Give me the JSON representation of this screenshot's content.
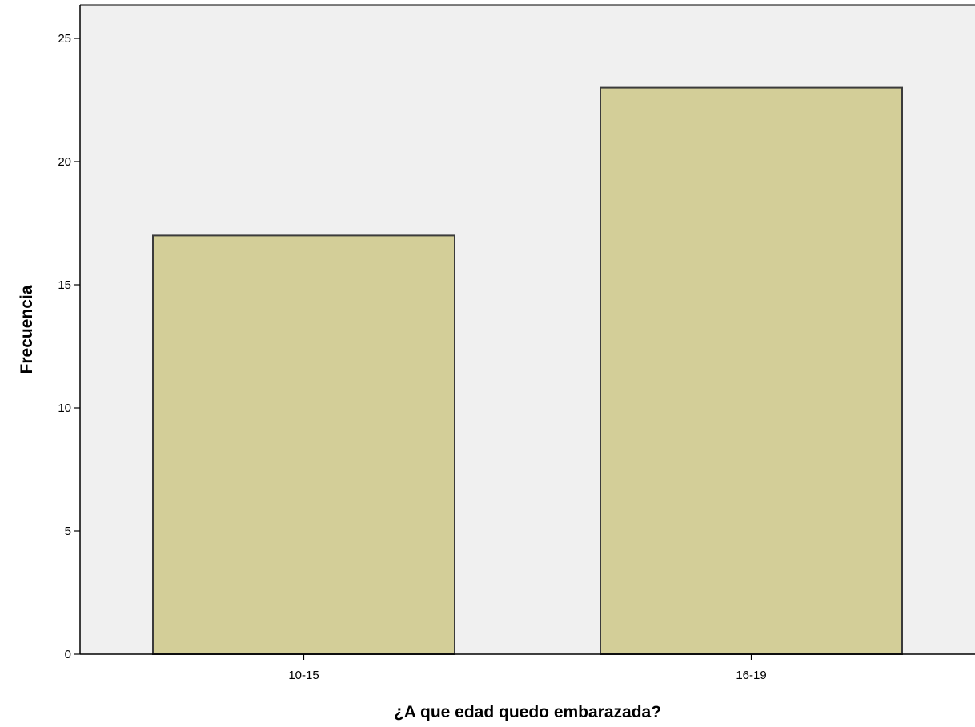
{
  "chart_data": {
    "type": "bar",
    "title": "",
    "xlabel": "¿A que edad quedo embarazada?",
    "ylabel": "Frecuencia",
    "categories": [
      "10-15",
      "16-19"
    ],
    "values": [
      17,
      23
    ],
    "ylim": [
      0,
      25
    ],
    "yticks": [
      0,
      5,
      10,
      15,
      20,
      25
    ],
    "grid": false,
    "legend": "none",
    "colors": {
      "plot_background": "#f0f0f0",
      "bar_fill": "#d3ce98",
      "bar_stroke": "#3b3b3b",
      "axis": "#000000"
    }
  }
}
